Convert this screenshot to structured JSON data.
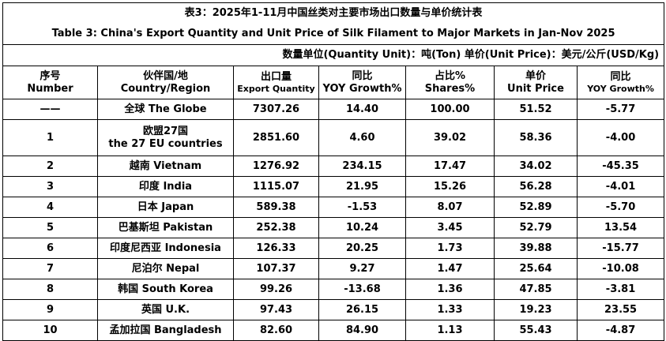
{
  "title_cn": "表3：2025年1-11月中国丝类对主要市场出口数量与单价统计表",
  "title_en": "Table 3: China's Export Quantity and Unit Price of Silk Filament to Major Markets in Jan-Nov 2025",
  "unit_note": "数量单位(Quantity Unit)：吨(Ton)  单价(Unit Price)：美元/公斤(USD/Kg)",
  "headers": {
    "no_cn": "序号",
    "no_en": "Number",
    "country_cn": "伙伴国/地",
    "country_en": "Country/Region",
    "qty_cn": "出口量",
    "qty_en": "Export Quantity",
    "yoy_cn": "同比",
    "yoy_en": "YOY Growth%",
    "share_cn": "占比%",
    "share_en": "Shares%",
    "price_cn": "单价",
    "price_en": "Unit Price",
    "yoy2_cn": "同比",
    "yoy2_en": "YOY Growth%"
  },
  "rows": [
    {
      "no": "——",
      "country": "全球 The Globe",
      "qty": "7307.26",
      "yoy": "14.40",
      "share": "100.00",
      "price": "51.52",
      "price_yoy": "-5.77"
    },
    {
      "no": "1",
      "country_cn": "欧盟27国",
      "country_en": "the 27 EU countries",
      "qty": "2851.60",
      "yoy": "4.60",
      "share": "39.02",
      "price": "58.36",
      "price_yoy": "-4.00"
    },
    {
      "no": "2",
      "country": "越南 Vietnam",
      "qty": "1276.92",
      "yoy": "234.15",
      "share": "17.47",
      "price": "34.02",
      "price_yoy": "-45.35"
    },
    {
      "no": "3",
      "country": "印度 India",
      "qty": "1115.07",
      "yoy": "21.95",
      "share": "15.26",
      "price": "56.28",
      "price_yoy": "-4.01"
    },
    {
      "no": "4",
      "country": "日本 Japan",
      "qty": "589.38",
      "yoy": "-1.53",
      "share": "8.07",
      "price": "52.89",
      "price_yoy": "-5.70"
    },
    {
      "no": "5",
      "country": "巴基斯坦 Pakistan",
      "qty": "252.38",
      "yoy": "10.24",
      "share": "3.45",
      "price": "52.79",
      "price_yoy": "13.54"
    },
    {
      "no": "6",
      "country": "印度尼西亚 Indonesia",
      "qty": "126.33",
      "yoy": "20.25",
      "share": "1.73",
      "price": "39.88",
      "price_yoy": "-15.77"
    },
    {
      "no": "7",
      "country": "尼泊尔 Nepal",
      "qty": "107.37",
      "yoy": "9.27",
      "share": "1.47",
      "price": "25.64",
      "price_yoy": "-10.08"
    },
    {
      "no": "8",
      "country": "韩国 South Korea",
      "qty": "99.26",
      "yoy": "-13.68",
      "share": "1.36",
      "price": "47.85",
      "price_yoy": "-3.81"
    },
    {
      "no": "9",
      "country": "英国 U.K.",
      "qty": "97.43",
      "yoy": "26.15",
      "share": "1.33",
      "price": "19.23",
      "price_yoy": "23.55"
    },
    {
      "no": "10",
      "country": "孟加拉国 Bangladesh",
      "qty": "82.60",
      "yoy": "84.90",
      "share": "1.13",
      "price": "55.43",
      "price_yoy": "-4.87"
    }
  ]
}
